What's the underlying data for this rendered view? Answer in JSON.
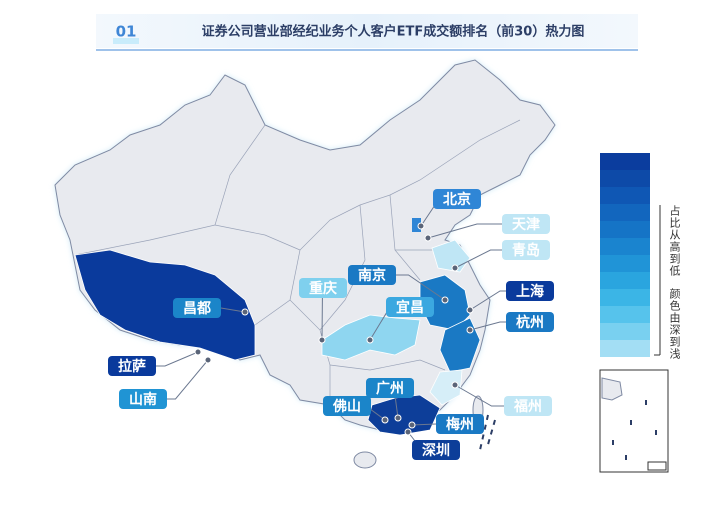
{
  "header": {
    "index": "01",
    "title": "证券公司营业部经纪业务个人客户ETF成交额排名（前30）热力图"
  },
  "map": {
    "labels": [
      {
        "text": "北京",
        "color": "#2f86d6"
      },
      {
        "text": "天津",
        "color": "#bfe6f5"
      },
      {
        "text": "青岛",
        "color": "#bfe6f5"
      },
      {
        "text": "南京",
        "color": "#1a79c4"
      },
      {
        "text": "上海",
        "color": "#0a3a9c"
      },
      {
        "text": "杭州",
        "color": "#1a79c4"
      },
      {
        "text": "重庆",
        "color": "#7fd0ee"
      },
      {
        "text": "宜昌",
        "color": "#3ba8e0"
      },
      {
        "text": "昌都",
        "color": "#1b85c9"
      },
      {
        "text": "拉萨",
        "color": "#0a3a9c"
      },
      {
        "text": "山南",
        "color": "#2094d4"
      },
      {
        "text": "广州",
        "color": "#1b85c9"
      },
      {
        "text": "佛山",
        "color": "#1b85c9"
      },
      {
        "text": "福州",
        "color": "#bfe6f5"
      },
      {
        "text": "梅州",
        "color": "#1a79c4"
      },
      {
        "text": "深圳",
        "color": "#0d3e99"
      }
    ]
  },
  "legend": {
    "lines": [
      "占比从高到低",
      "颜色由深到浅"
    ]
  }
}
